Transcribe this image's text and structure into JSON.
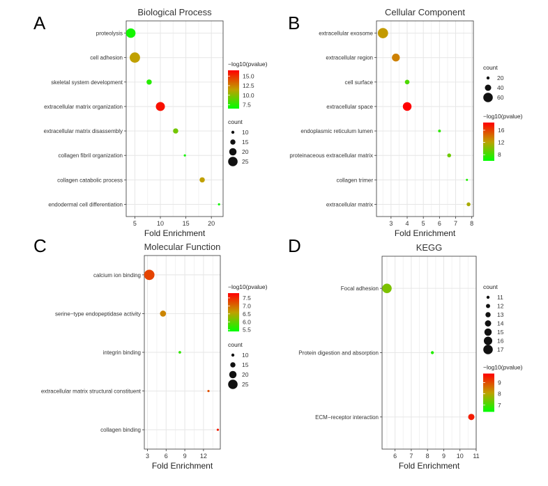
{
  "panel_labels": [
    "A",
    "B",
    "C",
    "D"
  ],
  "chart_data": [
    {
      "type": "scatter",
      "id": "A",
      "title": "Biological Process",
      "xlabel": "Fold Enrichment",
      "xlim": [
        3.3,
        22.3
      ],
      "xticks": [
        5,
        10,
        15,
        20
      ],
      "xtick_labels": [
        "5",
        "10",
        "15",
        "20"
      ],
      "categories": [
        "proteolysis",
        "cell adhesion",
        "skeletal system development",
        "extracellular matrix organization",
        "extracellular matrix disassembly",
        "collagen fibril organization",
        "collagen catabolic process",
        "endodermal cell differentiation"
      ],
      "x": [
        4.2,
        5.0,
        7.8,
        10.0,
        13.0,
        14.8,
        18.2,
        21.5
      ],
      "pvalue": [
        7.0,
        11.5,
        7.5,
        16.0,
        9.5,
        7.0,
        11.5,
        7.0
      ],
      "count": [
        25,
        27,
        15,
        24,
        15,
        8,
        15,
        8
      ],
      "color_legend": {
        "title": "−log10(pvalue)",
        "range": [
          6.5,
          16.5
        ],
        "ticks": [
          7.5,
          10.0,
          12.5,
          15.0
        ],
        "tick_labels": [
          "7.5",
          "10.0",
          "12.5",
          "15.0"
        ]
      },
      "size_legend": {
        "title": "count",
        "values": [
          10,
          15,
          20,
          25
        ],
        "labels": [
          "10",
          "15",
          "20",
          "25"
        ]
      }
    },
    {
      "type": "scatter",
      "id": "B",
      "title": "Cellular Component",
      "xlabel": "Fold Enrichment",
      "xlim": [
        2.1,
        8.1
      ],
      "xticks": [
        3,
        4,
        5,
        6,
        7,
        8
      ],
      "xtick_labels": [
        "3",
        "4",
        "5",
        "6",
        "7",
        "8"
      ],
      "categories": [
        "extracellular exosome",
        "extracellular region",
        "cell surface",
        "extracellular space",
        "endoplasmic reticulum lumen",
        "proteinaceous extracellular matrix",
        "collagen trimer",
        "extracellular matrix"
      ],
      "x": [
        2.5,
        3.3,
        4.0,
        4.0,
        6.0,
        6.6,
        7.7,
        7.8
      ],
      "pvalue": [
        12.5,
        13.5,
        8.5,
        18.5,
        7.5,
        9.5,
        7.0,
        11.5
      ],
      "count": [
        65,
        50,
        30,
        55,
        18,
        25,
        10,
        25
      ],
      "color_legend": {
        "title": "−log10(pvalue)",
        "range": [
          6.0,
          18.5
        ],
        "ticks": [
          8,
          12,
          16
        ],
        "tick_labels": [
          "8",
          "12",
          "16"
        ]
      },
      "size_legend": {
        "title": "count",
        "values": [
          20,
          40,
          60
        ],
        "labels": [
          "20",
          "40",
          "60"
        ]
      }
    },
    {
      "type": "scatter",
      "id": "C",
      "title": "Molecular Function",
      "xlabel": "Fold Enrichment",
      "xlim": [
        2.5,
        14.7
      ],
      "xticks": [
        3,
        6,
        9,
        12
      ],
      "xtick_labels": [
        "3",
        "6",
        "9",
        "12"
      ],
      "categories": [
        "calcium ion binding",
        "serine−type endopeptidase activity",
        "integrin binding",
        "extracellular matrix structural constituent",
        "collagen binding"
      ],
      "x": [
        3.3,
        5.5,
        8.2,
        12.8,
        14.3
      ],
      "pvalue": [
        7.3,
        6.8,
        5.7,
        7.2,
        7.6
      ],
      "count": [
        27,
        17,
        9,
        8,
        8
      ],
      "color_legend": {
        "title": "−log10(pvalue)",
        "range": [
          5.4,
          7.8
        ],
        "ticks": [
          5.5,
          6.0,
          6.5,
          7.0,
          7.5
        ],
        "tick_labels": [
          "5.5",
          "6.0",
          "6.5",
          "7.0",
          "7.5"
        ]
      },
      "size_legend": {
        "title": "count",
        "values": [
          10,
          15,
          20,
          25
        ],
        "labels": [
          "10",
          "15",
          "20",
          "25"
        ]
      }
    },
    {
      "type": "scatter",
      "id": "D",
      "title": "KEGG",
      "xlabel": "Fold Enrichment",
      "xlim": [
        5.2,
        11.0
      ],
      "xticks": [
        6,
        7,
        8,
        9,
        10,
        11
      ],
      "xtick_labels": [
        "6",
        "7",
        "8",
        "9",
        "10",
        "11"
      ],
      "categories": [
        "Focal adhesion",
        "Protein digestion and absorption",
        "ECM−receptor interaction"
      ],
      "x": [
        5.5,
        8.3,
        10.7
      ],
      "pvalue": [
        7.5,
        6.7,
        9.5
      ],
      "count": [
        17,
        11,
        14
      ],
      "color_legend": {
        "title": "−log10(pvalue)",
        "range": [
          6.4,
          9.8
        ],
        "ticks": [
          7,
          8,
          9
        ],
        "tick_labels": [
          "7",
          "8",
          "9"
        ]
      },
      "size_legend": {
        "title": "count",
        "values": [
          11,
          12,
          13,
          14,
          15,
          16,
          17
        ],
        "labels": [
          "11",
          "12",
          "13",
          "14",
          "15",
          "16",
          "17"
        ]
      }
    }
  ]
}
